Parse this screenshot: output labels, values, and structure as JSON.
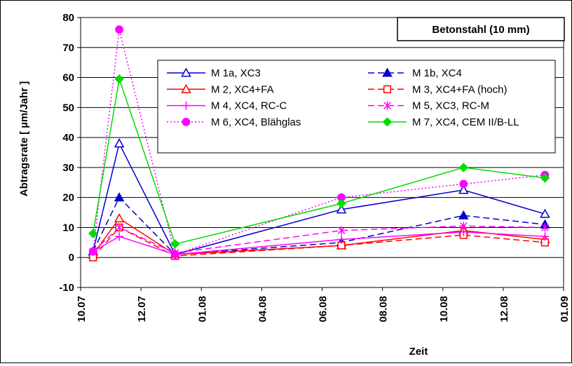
{
  "chart_data": {
    "type": "line",
    "xlabel": "Zeit",
    "ylabel": "Abtragsrate  [ µm/Jahr ]",
    "ylim": [
      -10,
      80
    ],
    "yticks": [
      -10,
      0,
      10,
      20,
      30,
      40,
      50,
      60,
      70,
      80
    ],
    "xlim": [
      0,
      7
    ],
    "x_tick_labels": [
      "10.07",
      "12.07",
      "01.08",
      "04.08",
      "06.08",
      "08.08",
      "10.08",
      "12.08",
      "01.09"
    ],
    "x": [
      0.18,
      0.56,
      1.37,
      3.78,
      5.55,
      6.73
    ],
    "grid": "horizontal",
    "legend_position": "top-center",
    "annotation": "Betonstahl (10 mm)",
    "series": [
      {
        "name": "M 1a, XC3",
        "color": "#0000cc",
        "dash": "solid",
        "marker": "triangle-open",
        "values": [
          2,
          38,
          1,
          16,
          22.5,
          14.5
        ]
      },
      {
        "name": "M 1b, XC4",
        "color": "#0000cc",
        "dash": "dashed",
        "marker": "triangle-filled",
        "values": [
          2,
          20,
          1,
          5,
          14,
          11
        ]
      },
      {
        "name": "M 2, XC4+FA",
        "color": "#ff0000",
        "dash": "solid",
        "marker": "triangle-open",
        "values": [
          1,
          13,
          1,
          4,
          9,
          6
        ]
      },
      {
        "name": "M 3, XC4+FA (hoch)",
        "color": "#ff0000",
        "dash": "dashed",
        "marker": "square-open",
        "values": [
          0,
          10,
          0.5,
          4,
          7.5,
          5
        ]
      },
      {
        "name": "M 4, XC4, RC-C",
        "color": "#ff00ff",
        "dash": "solid",
        "marker": "plus",
        "values": [
          2,
          7,
          1,
          6,
          8.5,
          7
        ]
      },
      {
        "name": "M 5, XC3, RC-M",
        "color": "#ff00ff",
        "dash": "dashed",
        "marker": "asterisk",
        "values": [
          2,
          10,
          1.5,
          9,
          10.5,
          10
        ]
      },
      {
        "name": "M 6, XC4, Blähglas",
        "color": "#ff00ff",
        "dash": "dotted",
        "marker": "circle-filled",
        "values": [
          2,
          76,
          1,
          20,
          24.5,
          27.5
        ]
      },
      {
        "name": "M 7, XC4, CEM II/B-LL",
        "color": "#00dd00",
        "dash": "solid",
        "marker": "diamond-filled",
        "values": [
          8,
          59.5,
          4.5,
          18,
          30,
          26.5
        ]
      }
    ]
  }
}
